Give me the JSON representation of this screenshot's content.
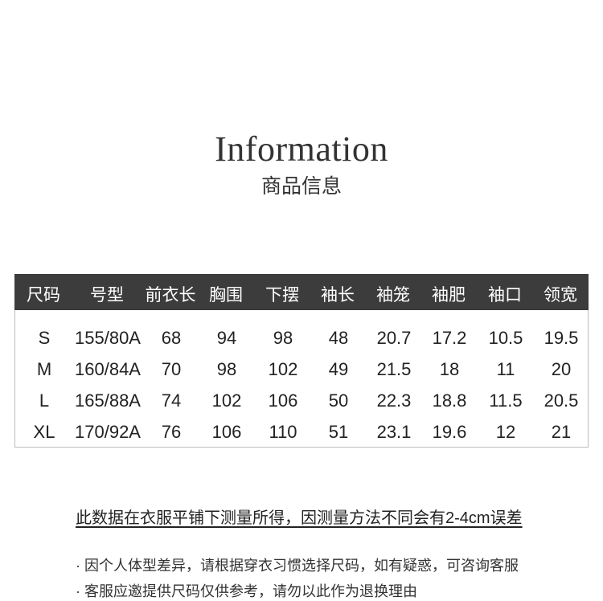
{
  "header": {
    "title": "Information",
    "subtitle": "商品信息"
  },
  "table": {
    "columns": [
      "尺码",
      "号型",
      "前衣长",
      "胸围",
      "下摆",
      "袖长",
      "袖笼",
      "袖肥",
      "袖口",
      "领宽"
    ],
    "rows": [
      [
        "S",
        "155/80A",
        "68",
        "94",
        "98",
        "48",
        "20.7",
        "17.2",
        "10.5",
        "19.5"
      ],
      [
        "M",
        "160/84A",
        "70",
        "98",
        "102",
        "49",
        "21.5",
        "18",
        "11",
        "20"
      ],
      [
        "L",
        "165/88A",
        "74",
        "102",
        "106",
        "50",
        "22.3",
        "18.8",
        "11.5",
        "20.5"
      ],
      [
        "XL",
        "170/92A",
        "76",
        "106",
        "110",
        "51",
        "23.1",
        "19.6",
        "12",
        "21"
      ]
    ],
    "header_color": "#3c3c3c"
  },
  "notes": {
    "main": "此数据在衣服平铺下测量所得，因测量方法不同会有2-4cm误差",
    "bullets": [
      "· 因个人体型差异，请根据穿衣习惯选择尺码，如有疑惑，可咨询客服",
      "· 客服应邀提供尺码仅供参考，请勿以此作为退换理由"
    ]
  }
}
